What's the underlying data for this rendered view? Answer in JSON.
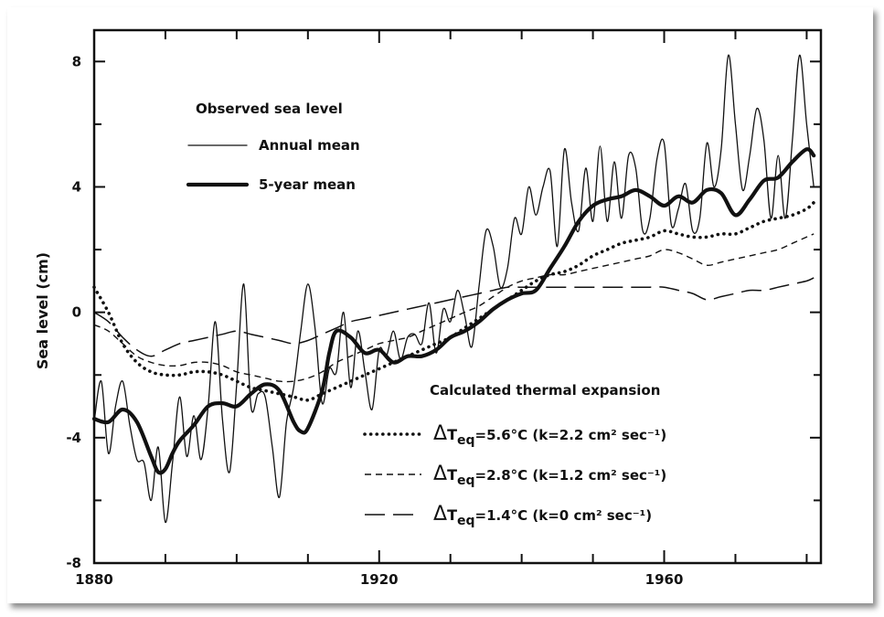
{
  "chart_data": {
    "type": "line",
    "title": "",
    "xlabel": "",
    "ylabel": "Sea level (cm)",
    "xlim": [
      1880,
      1982
    ],
    "ylim": [
      -8,
      9
    ],
    "xticks": [
      1880,
      1920,
      1960
    ],
    "xtick_labels": [
      "1880",
      "1920",
      "1960"
    ],
    "yticks": [
      -8,
      -4,
      0,
      4,
      8
    ],
    "ytick_labels": [
      "-8",
      "-4",
      "0",
      "4",
      "8"
    ],
    "legend_observed_title": "Observed sea level",
    "legend_calc_title": "Calculated thermal expansion",
    "series": [
      {
        "name": "Annual mean",
        "style": "thin",
        "x": [
          1880,
          1881,
          1882,
          1883,
          1884,
          1885,
          1886,
          1887,
          1888,
          1889,
          1890,
          1891,
          1892,
          1893,
          1894,
          1895,
          1896,
          1897,
          1898,
          1899,
          1900,
          1901,
          1902,
          1903,
          1904,
          1905,
          1906,
          1907,
          1908,
          1909,
          1910,
          1911,
          1912,
          1913,
          1914,
          1915,
          1916,
          1917,
          1918,
          1919,
          1920,
          1921,
          1922,
          1923,
          1924,
          1925,
          1926,
          1927,
          1928,
          1929,
          1930,
          1931,
          1932,
          1933,
          1934,
          1935,
          1936,
          1937,
          1938,
          1939,
          1940,
          1941,
          1942,
          1943,
          1944,
          1945,
          1946,
          1947,
          1948,
          1949,
          1950,
          1951,
          1952,
          1953,
          1954,
          1955,
          1956,
          1957,
          1958,
          1959,
          1960,
          1961,
          1962,
          1963,
          1964,
          1965,
          1966,
          1967,
          1968,
          1969,
          1970,
          1971,
          1972,
          1973,
          1974,
          1975,
          1976,
          1977,
          1978,
          1979,
          1980,
          1981
        ],
        "values": [
          -3.5,
          -2.2,
          -4.5,
          -3.0,
          -2.2,
          -3.6,
          -4.7,
          -4.8,
          -6.0,
          -4.3,
          -6.7,
          -4.8,
          -2.7,
          -4.6,
          -3.3,
          -4.7,
          -3.0,
          -0.3,
          -3.4,
          -5.1,
          -2.3,
          0.9,
          -3.0,
          -2.6,
          -2.7,
          -4.3,
          -5.9,
          -3.5,
          -2.4,
          -0.6,
          0.9,
          -0.5,
          -2.9,
          -1.8,
          -1.9,
          0.0,
          -2.4,
          -0.6,
          -1.9,
          -3.1,
          -1.2,
          -1.4,
          -0.6,
          -1.5,
          -0.8,
          -0.7,
          -1.0,
          0.3,
          -1.3,
          0.1,
          -0.3,
          0.7,
          -0.1,
          -1.1,
          0.8,
          2.6,
          2.1,
          0.8,
          1.4,
          3.0,
          2.5,
          4.0,
          3.1,
          4.0,
          4.5,
          2.1,
          5.2,
          3.5,
          2.6,
          4.6,
          2.9,
          5.3,
          2.9,
          4.8,
          3.0,
          5.0,
          4.6,
          2.6,
          3.0,
          4.9,
          5.4,
          2.8,
          3.3,
          4.1,
          2.6,
          3.0,
          5.4,
          4.0,
          5.2,
          8.2,
          6.0,
          3.9,
          5.0,
          6.5,
          5.5,
          3.0,
          5.0,
          3.0,
          5.5,
          8.2,
          6.0,
          4.0
        ],
        "x_trim": [
          1880,
          1882,
          1883,
          1884,
          1885,
          1886,
          1887,
          1888,
          1889,
          1890,
          1891,
          1892,
          1893,
          1894,
          1895,
          1896,
          1897,
          1898,
          1899,
          1900,
          1901,
          1902,
          1903,
          1904,
          1905,
          1906,
          1907,
          1908,
          1909,
          1910,
          1911,
          1912,
          1913,
          1914,
          1915,
          1916,
          1917,
          1918,
          1919,
          1920,
          1921,
          1922,
          1923,
          1924,
          1925,
          1926,
          1927,
          1928,
          1929,
          1930,
          1931,
          1932,
          1933,
          1934,
          1935,
          1936,
          1937,
          1938,
          1939,
          1940,
          1941,
          1942,
          1943,
          1944,
          1945,
          1946,
          1947,
          1948,
          1949,
          1950,
          1951,
          1952,
          1953,
          1954,
          1955,
          1956,
          1957,
          1958,
          1959,
          1960,
          1961,
          1962,
          1963,
          1964,
          1965,
          1966,
          1967,
          1968,
          1969,
          1970,
          1971,
          1972,
          1973,
          1974,
          1975,
          1976,
          1977,
          1978,
          1979,
          1980,
          1981
        ]
      },
      {
        "name": "5-year mean",
        "style": "thick",
        "x": [
          1880,
          1882,
          1884,
          1886,
          1888,
          1889,
          1890,
          1891,
          1892,
          1894,
          1896,
          1898,
          1900,
          1902,
          1904,
          1906,
          1908,
          1909,
          1910,
          1912,
          1913,
          1914,
          1916,
          1918,
          1920,
          1922,
          1924,
          1926,
          1928,
          1930,
          1932,
          1934,
          1936,
          1938,
          1940,
          1942,
          1944,
          1946,
          1948,
          1950,
          1952,
          1954,
          1956,
          1958,
          1960,
          1962,
          1964,
          1966,
          1968,
          1970,
          1972,
          1974,
          1976,
          1978,
          1980,
          1981
        ],
        "values": [
          -3.4,
          -3.5,
          -3.1,
          -3.5,
          -4.6,
          -5.1,
          -5.0,
          -4.5,
          -4.1,
          -3.6,
          -3.0,
          -2.9,
          -3.0,
          -2.6,
          -2.3,
          -2.5,
          -3.5,
          -3.8,
          -3.7,
          -2.5,
          -1.3,
          -0.6,
          -0.8,
          -1.3,
          -1.2,
          -1.6,
          -1.4,
          -1.4,
          -1.2,
          -0.8,
          -0.6,
          -0.3,
          0.1,
          0.4,
          0.6,
          0.7,
          1.4,
          2.1,
          2.9,
          3.4,
          3.6,
          3.7,
          3.9,
          3.7,
          3.4,
          3.7,
          3.5,
          3.9,
          3.8,
          3.1,
          3.6,
          4.2,
          4.3,
          4.8,
          5.2,
          5.0
        ]
      },
      {
        "name": "ΔTeq=5.6°C (k=2.2 cm² sec⁻¹)",
        "style": "dotted",
        "x": [
          1880,
          1882,
          1884,
          1886,
          1888,
          1890,
          1892,
          1894,
          1896,
          1898,
          1900,
          1902,
          1904,
          1906,
          1908,
          1910,
          1912,
          1914,
          1916,
          1918,
          1920,
          1922,
          1924,
          1926,
          1928,
          1930,
          1932,
          1934,
          1936,
          1938,
          1940,
          1942,
          1944,
          1946,
          1948,
          1950,
          1952,
          1954,
          1956,
          1958,
          1960,
          1962,
          1964,
          1966,
          1968,
          1970,
          1972,
          1974,
          1976,
          1978,
          1980,
          1981
        ],
        "values": [
          0.8,
          0.0,
          -1.0,
          -1.6,
          -1.9,
          -2.0,
          -2.0,
          -1.9,
          -1.9,
          -2.0,
          -2.2,
          -2.4,
          -2.5,
          -2.6,
          -2.7,
          -2.8,
          -2.6,
          -2.4,
          -2.2,
          -2.0,
          -1.8,
          -1.6,
          -1.4,
          -1.2,
          -1.0,
          -0.8,
          -0.5,
          -0.2,
          0.1,
          0.4,
          0.7,
          1.0,
          1.2,
          1.3,
          1.5,
          1.8,
          2.0,
          2.2,
          2.3,
          2.4,
          2.6,
          2.5,
          2.4,
          2.4,
          2.5,
          2.5,
          2.7,
          2.9,
          3.0,
          3.1,
          3.3,
          3.5
        ]
      },
      {
        "name": "ΔTeq=2.8°C (k=1.2 cm² sec⁻¹)",
        "style": "short-dash",
        "x": [
          1880,
          1882,
          1884,
          1886,
          1888,
          1890,
          1892,
          1894,
          1896,
          1898,
          1900,
          1902,
          1904,
          1906,
          1908,
          1910,
          1912,
          1914,
          1916,
          1918,
          1920,
          1922,
          1924,
          1926,
          1928,
          1930,
          1932,
          1934,
          1936,
          1938,
          1940,
          1942,
          1944,
          1946,
          1948,
          1950,
          1952,
          1954,
          1956,
          1958,
          1960,
          1962,
          1964,
          1966,
          1968,
          1970,
          1972,
          1974,
          1976,
          1978,
          1980,
          1981
        ],
        "values": [
          -0.4,
          -0.6,
          -1.0,
          -1.4,
          -1.6,
          -1.7,
          -1.7,
          -1.6,
          -1.6,
          -1.7,
          -1.9,
          -2.0,
          -2.1,
          -2.2,
          -2.2,
          -2.1,
          -1.9,
          -1.6,
          -1.4,
          -1.2,
          -1.0,
          -0.9,
          -0.8,
          -0.6,
          -0.4,
          -0.2,
          0.0,
          0.2,
          0.5,
          0.8,
          1.0,
          1.1,
          1.2,
          1.2,
          1.3,
          1.4,
          1.5,
          1.6,
          1.7,
          1.8,
          2.0,
          1.9,
          1.7,
          1.5,
          1.6,
          1.7,
          1.8,
          1.9,
          2.0,
          2.2,
          2.4,
          2.5
        ]
      },
      {
        "name": "ΔTeq=1.4°C (k=0 cm² sec⁻¹)",
        "style": "long-dash",
        "x": [
          1880,
          1882,
          1884,
          1886,
          1888,
          1890,
          1892,
          1894,
          1896,
          1898,
          1900,
          1902,
          1904,
          1906,
          1908,
          1910,
          1912,
          1914,
          1916,
          1918,
          1920,
          1922,
          1924,
          1926,
          1928,
          1930,
          1932,
          1934,
          1936,
          1938,
          1940,
          1942,
          1944,
          1946,
          1948,
          1950,
          1952,
          1954,
          1956,
          1958,
          1960,
          1962,
          1964,
          1966,
          1968,
          1970,
          1972,
          1974,
          1976,
          1978,
          1980,
          1981
        ],
        "values": [
          0.0,
          -0.3,
          -0.8,
          -1.2,
          -1.4,
          -1.2,
          -1.0,
          -0.9,
          -0.8,
          -0.7,
          -0.6,
          -0.7,
          -0.8,
          -0.9,
          -1.0,
          -0.9,
          -0.7,
          -0.5,
          -0.3,
          -0.2,
          -0.1,
          0.0,
          0.1,
          0.2,
          0.3,
          0.4,
          0.5,
          0.6,
          0.7,
          0.8,
          0.8,
          0.8,
          0.8,
          0.8,
          0.8,
          0.8,
          0.8,
          0.8,
          0.8,
          0.8,
          0.8,
          0.7,
          0.6,
          0.4,
          0.5,
          0.6,
          0.7,
          0.7,
          0.8,
          0.9,
          1.0,
          1.1
        ]
      }
    ],
    "legend_entries": [
      {
        "label": "Annual mean",
        "style": "thin"
      },
      {
        "label": "5-year mean",
        "style": "thick"
      },
      {
        "label_prefix": "Δ",
        "label": "T",
        "sub": "eq",
        "rest": "=5.6°C (k=2.2 cm² sec⁻¹)",
        "style": "dotted"
      },
      {
        "label_prefix": "Δ",
        "label": "T",
        "sub": "eq",
        "rest": "=2.8°C (k=1.2 cm² sec⁻¹)",
        "style": "short-dash"
      },
      {
        "label_prefix": "Δ",
        "label": "T",
        "sub": "eq",
        "rest": "=1.4°C (k=0 cm² sec⁻¹)",
        "style": "long-dash"
      }
    ],
    "grid": false,
    "legend_placement": "top-left and bottom-right"
  }
}
